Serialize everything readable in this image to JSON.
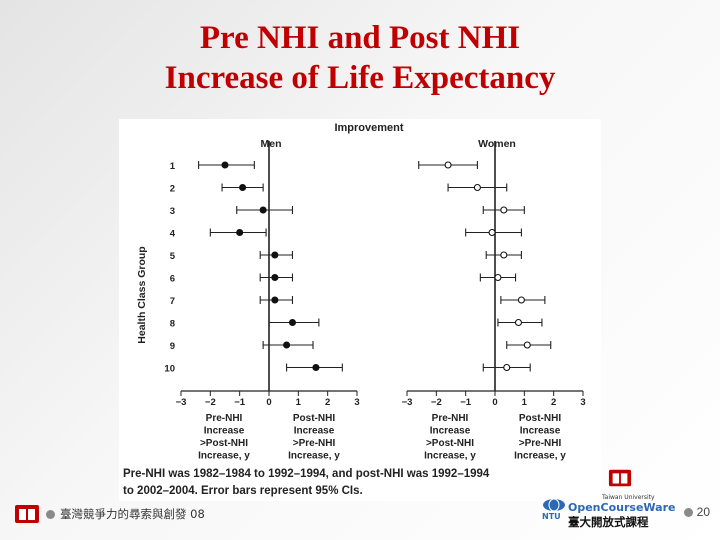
{
  "slide": {
    "title_line1": "Pre NHI and Post NHI",
    "title_line2": "Increase of Life Expectancy",
    "footer_text": "臺灣競爭力的尋索與創發 08",
    "page_number": "20",
    "ocw_university": "Taiwan University",
    "ocw_name": "OpenCourseWare",
    "ocw_chinese": "臺大開放式課程",
    "ocw_abbrev": "NTU",
    "colors": {
      "title": "#c00000",
      "accent": "#c00000",
      "ocw": "#2c69b5"
    }
  },
  "chart_data": {
    "type": "scatter",
    "subtype": "forest-plot",
    "title": "Improvement",
    "ylabel": "Health Class Group",
    "categories": [
      "1",
      "2",
      "3",
      "4",
      "5",
      "6",
      "7",
      "8",
      "9",
      "10"
    ],
    "xlim": [
      -3,
      3
    ],
    "xticks": [
      "−3",
      "−2",
      "−1",
      "0",
      "1",
      "2",
      "3"
    ],
    "panels": [
      {
        "name": "Men",
        "marker": "filled",
        "values": [
          -1.5,
          -0.9,
          -0.2,
          -1.0,
          0.2,
          0.2,
          0.2,
          0.8,
          0.6,
          1.6
        ],
        "ci_low": [
          -2.4,
          -1.6,
          -1.1,
          -2.0,
          -0.3,
          -0.3,
          -0.3,
          0.0,
          -0.2,
          0.6
        ],
        "ci_high": [
          -0.5,
          -0.2,
          0.8,
          -0.1,
          0.8,
          0.8,
          0.8,
          1.7,
          1.5,
          2.5
        ]
      },
      {
        "name": "Women",
        "marker": "open",
        "values": [
          -1.6,
          -0.6,
          0.3,
          -0.1,
          0.3,
          0.1,
          0.9,
          0.8,
          1.1,
          0.4
        ],
        "ci_low": [
          -2.6,
          -1.6,
          -0.4,
          -1.0,
          -0.3,
          -0.5,
          0.2,
          0.1,
          0.4,
          -0.4
        ],
        "ci_high": [
          -0.6,
          0.4,
          1.0,
          0.9,
          0.9,
          0.7,
          1.7,
          1.6,
          1.9,
          1.2
        ]
      }
    ],
    "left_annotation": [
      "Pre-NHI",
      "Increase",
      ">Post-NHI",
      "Increase, y"
    ],
    "right_annotation": [
      "Post-NHI",
      "Increase",
      ">Pre-NHI",
      "Increase, y"
    ],
    "caption_line1": "Pre-NHI was 1982–1984 to 1992–1994, and post-NHI was 1992–1994",
    "caption_line2": "to 2002–2004. Error bars represent 95% CIs."
  }
}
